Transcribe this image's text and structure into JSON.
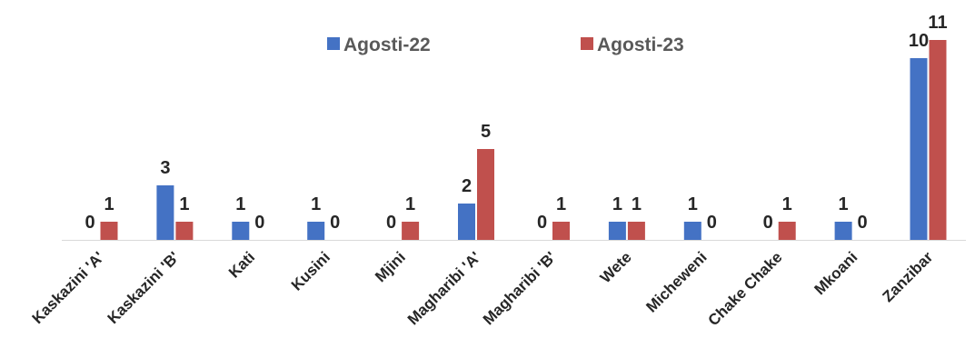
{
  "chart_data": {
    "type": "bar",
    "categories": [
      "Kaskazini 'A'",
      "Kaskazini 'B'",
      "Kati",
      "Kusini",
      "Mjini",
      "Magharibi 'A'",
      "Magharibi 'B'",
      "Wete",
      "Micheweni",
      "Chake Chake",
      "Mkoani",
      "Zanzibar"
    ],
    "series": [
      {
        "name": "Agosti-22",
        "color": "#4472C4",
        "values": [
          0,
          3,
          1,
          1,
          0,
          2,
          0,
          1,
          1,
          0,
          1,
          10
        ]
      },
      {
        "name": "Agosti-23",
        "color": "#C0504D",
        "values": [
          1,
          1,
          0,
          0,
          1,
          5,
          1,
          1,
          0,
          1,
          0,
          11
        ]
      }
    ],
    "title": "",
    "xlabel": "",
    "ylabel": "",
    "ylim": [
      0,
      11
    ],
    "grid": false,
    "legend": "top-center",
    "data_labels": true
  }
}
